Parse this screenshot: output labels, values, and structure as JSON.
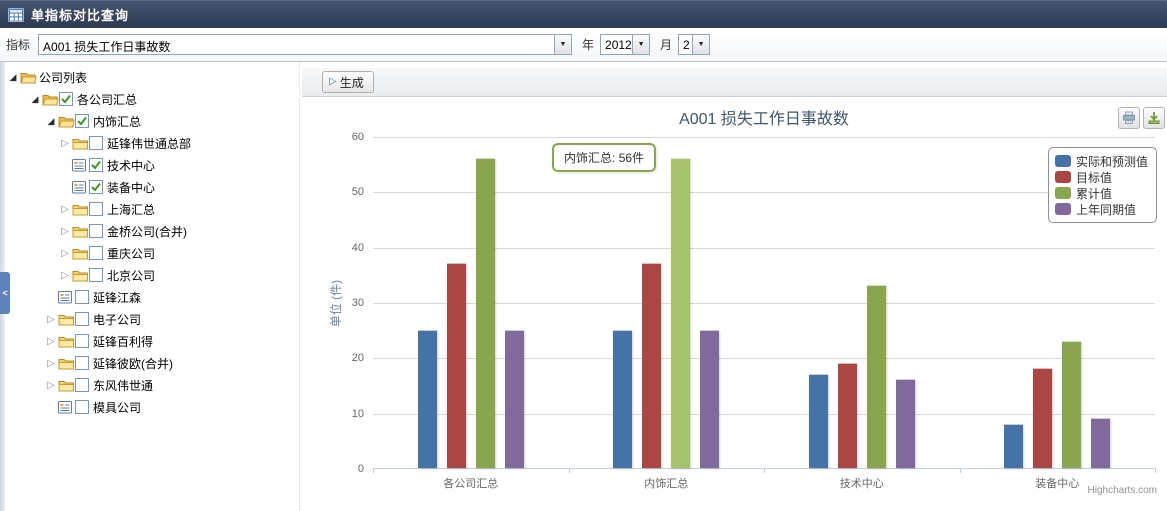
{
  "header": {
    "title": "单指标对比查询"
  },
  "filters": {
    "indicator_label": "指标",
    "indicator_value": "A001 损失工作日事故数",
    "year_label": "年",
    "year_value": "2012",
    "month_label": "月",
    "month_value": "2",
    "dropdown_arrow": "▼"
  },
  "splitter": {
    "collapse_label": "<"
  },
  "toolbar": {
    "generate_label": "生成",
    "generate_icon": "▷"
  },
  "tree": {
    "items": [
      {
        "label": "公司列表",
        "level": 0,
        "arrow": "expanded",
        "icon": "folder-open-icon",
        "checkbox": "none"
      },
      {
        "label": "各公司汇总",
        "level": 1,
        "arrow": "expanded",
        "icon": "folder-open-icon",
        "checkbox": "checked"
      },
      {
        "label": "内饰汇总",
        "level": 2,
        "arrow": "expanded",
        "icon": "folder-open-icon",
        "checkbox": "checked"
      },
      {
        "label": "延锋伟世通总部",
        "level": 3,
        "arrow": "collapsed",
        "icon": "folder-icon",
        "checkbox": "unchecked"
      },
      {
        "label": "技术中心",
        "level": 3,
        "arrow": "none",
        "icon": "leaf-icon",
        "checkbox": "checked"
      },
      {
        "label": "装备中心",
        "level": 3,
        "arrow": "none",
        "icon": "leaf-icon",
        "checkbox": "checked"
      },
      {
        "label": "上海汇总",
        "level": 3,
        "arrow": "collapsed",
        "icon": "folder-icon",
        "checkbox": "unchecked"
      },
      {
        "label": "金桥公司(合并)",
        "level": 3,
        "arrow": "collapsed",
        "icon": "folder-icon",
        "checkbox": "unchecked"
      },
      {
        "label": "重庆公司",
        "level": 3,
        "arrow": "collapsed",
        "icon": "folder-icon",
        "checkbox": "unchecked"
      },
      {
        "label": "北京公司",
        "level": 3,
        "arrow": "collapsed",
        "icon": "folder-icon",
        "checkbox": "unchecked"
      },
      {
        "label": "延锋江森",
        "level": 2,
        "arrow": "none",
        "icon": "leaf-icon",
        "checkbox": "unchecked"
      },
      {
        "label": "电子公司",
        "level": 2,
        "arrow": "collapsed",
        "icon": "folder-icon",
        "checkbox": "unchecked"
      },
      {
        "label": "延锋百利得",
        "level": 2,
        "arrow": "collapsed",
        "icon": "folder-icon",
        "checkbox": "unchecked"
      },
      {
        "label": "延锋彼欧(合并)",
        "level": 2,
        "arrow": "collapsed",
        "icon": "folder-icon",
        "checkbox": "unchecked"
      },
      {
        "label": "东风伟世通",
        "level": 2,
        "arrow": "collapsed",
        "icon": "folder-icon",
        "checkbox": "unchecked"
      },
      {
        "label": "模具公司",
        "level": 2,
        "arrow": "none",
        "icon": "leaf-icon",
        "checkbox": "unchecked"
      }
    ]
  },
  "chart_data": {
    "type": "bar",
    "title": "A001 损失工作日事故数",
    "categories": [
      "各公司汇总",
      "内饰汇总",
      "技术中心",
      "装备中心"
    ],
    "series": [
      {
        "name": "实际和预测值",
        "color": "#4572A7",
        "values": [
          25,
          25,
          17,
          8
        ]
      },
      {
        "name": "目标值",
        "color": "#AA4643",
        "values": [
          37,
          37,
          19,
          18
        ]
      },
      {
        "name": "累计值",
        "color": "#89A54E",
        "values": [
          56,
          56,
          33,
          23
        ]
      },
      {
        "name": "上年同期值",
        "color": "#80699B",
        "values": [
          25,
          25,
          16,
          9
        ]
      }
    ],
    "xlabel": "",
    "ylabel": "单位 (件)",
    "ylim": [
      0,
      60
    ],
    "tick_interval": 10,
    "grid": true,
    "legend_position": "top-right",
    "tooltip": {
      "label": "内饰汇总",
      "separator": ": ",
      "value": "56件",
      "category_index": 1,
      "series_index": 2,
      "highlight_color": "#A6C26C",
      "border_color": "#89A54E"
    },
    "credit": "Highcharts.com"
  }
}
